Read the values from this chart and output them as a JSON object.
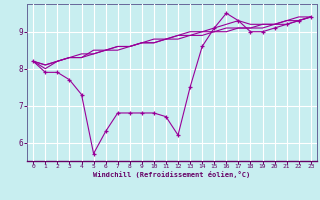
{
  "title": "",
  "xlabel": "Windchill (Refroidissement éolien,°C)",
  "ylabel": "",
  "bg_color": "#c8eef0",
  "grid_color": "#ffffff",
  "line_color": "#990099",
  "xlim": [
    -0.5,
    23.5
  ],
  "ylim": [
    5.5,
    9.75
  ],
  "xticks": [
    0,
    1,
    2,
    3,
    4,
    5,
    6,
    7,
    8,
    9,
    10,
    11,
    12,
    13,
    14,
    15,
    16,
    17,
    18,
    19,
    20,
    21,
    22,
    23
  ],
  "yticks": [
    6,
    7,
    8,
    9
  ],
  "series": [
    [
      8.2,
      7.9,
      7.9,
      7.7,
      7.3,
      5.7,
      6.3,
      6.8,
      6.8,
      6.8,
      6.8,
      6.7,
      6.2,
      7.5,
      8.6,
      9.1,
      9.5,
      9.3,
      9.0,
      9.0,
      9.1,
      9.2,
      9.3,
      9.4
    ],
    [
      8.2,
      8.1,
      8.2,
      8.3,
      8.3,
      8.4,
      8.5,
      8.5,
      8.6,
      8.7,
      8.7,
      8.8,
      8.8,
      8.9,
      8.9,
      9.0,
      9.0,
      9.1,
      9.1,
      9.1,
      9.2,
      9.2,
      9.3,
      9.4
    ],
    [
      8.2,
      8.1,
      8.2,
      8.3,
      8.4,
      8.4,
      8.5,
      8.6,
      8.6,
      8.7,
      8.7,
      8.8,
      8.9,
      8.9,
      9.0,
      9.0,
      9.1,
      9.1,
      9.1,
      9.2,
      9.2,
      9.3,
      9.3,
      9.4
    ],
    [
      8.2,
      8.0,
      8.2,
      8.3,
      8.3,
      8.5,
      8.5,
      8.6,
      8.6,
      8.7,
      8.8,
      8.8,
      8.9,
      9.0,
      9.0,
      9.1,
      9.2,
      9.3,
      9.2,
      9.2,
      9.2,
      9.3,
      9.4,
      9.4
    ]
  ]
}
